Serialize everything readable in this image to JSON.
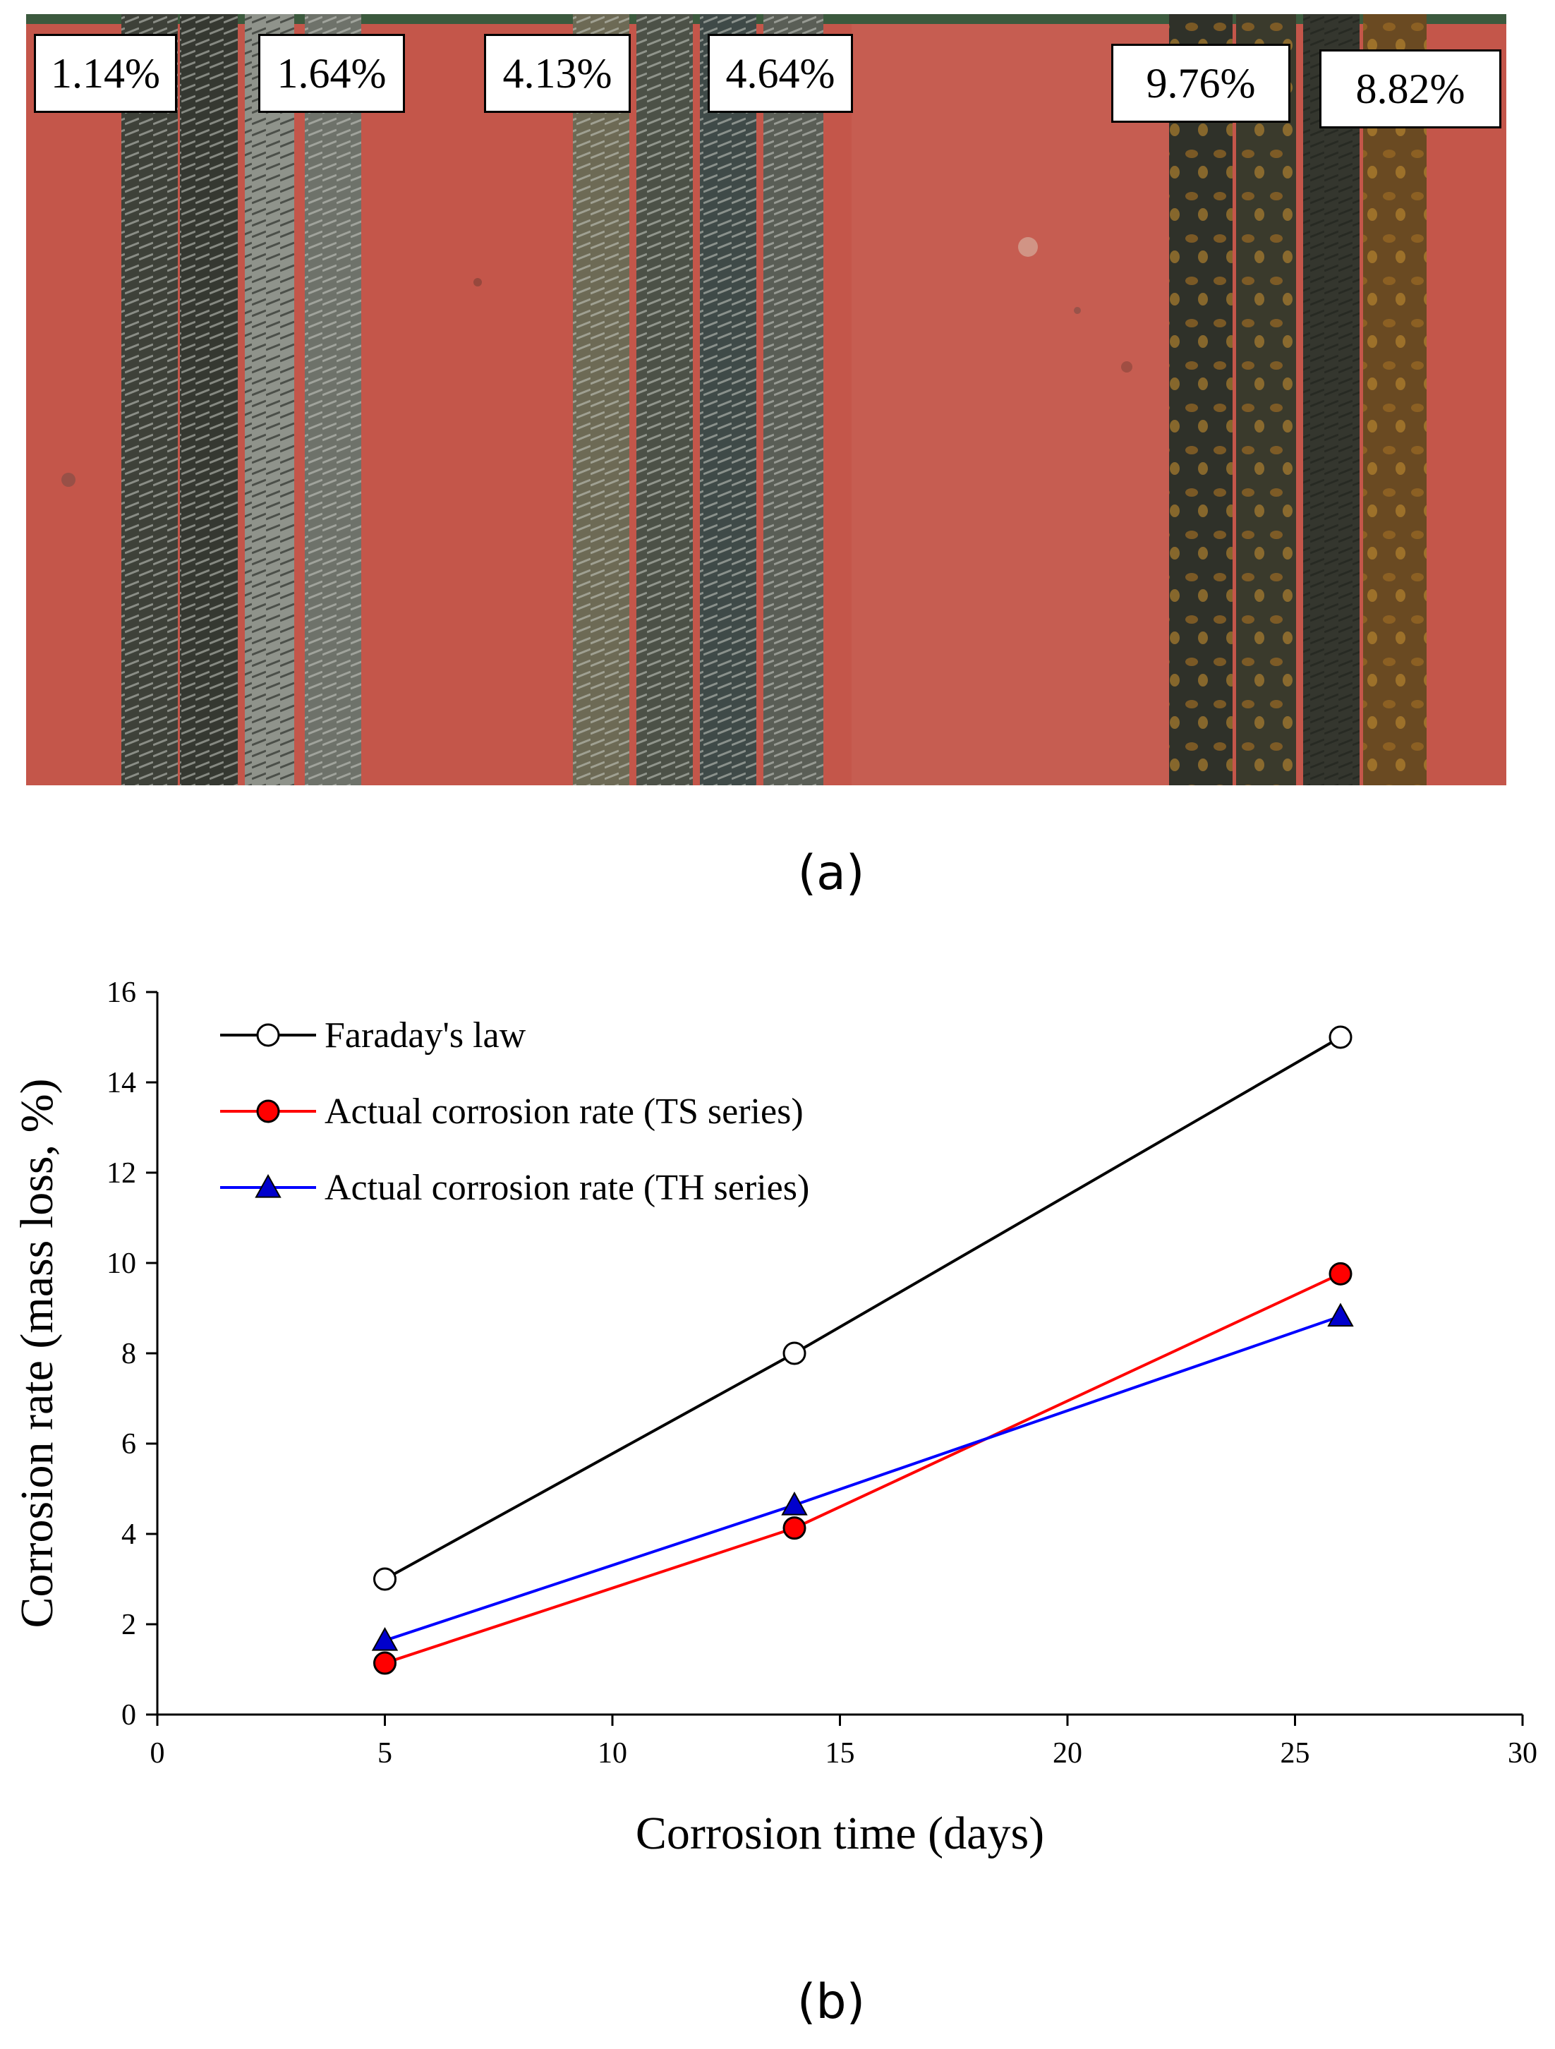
{
  "figure": {
    "panel_a_caption": "(a)",
    "panel_b_caption": "(b)"
  },
  "photo": {
    "labels": [
      "1.14%",
      "1.64%",
      "4.13%",
      "4.64%",
      "9.76%",
      "8.82%"
    ],
    "colors": {
      "background": "#c4564a",
      "rebar_dark": "#3a3d35",
      "rebar_light": "#9fa29a",
      "rust": "#8a5a22"
    }
  },
  "chart_data": {
    "type": "line",
    "xlabel": "Corrosion time (days)",
    "ylabel": "Corrosion rate (mass loss, %)",
    "xlim": [
      0,
      30
    ],
    "ylim": [
      0,
      16
    ],
    "xticks": [
      0,
      5,
      10,
      15,
      20,
      25,
      30
    ],
    "yticks": [
      0,
      2,
      4,
      6,
      8,
      10,
      12,
      14,
      16
    ],
    "grid": false,
    "legend_position": "top-left",
    "series": [
      {
        "name": "Faraday's law",
        "color": "#000000",
        "marker": "open-circle",
        "x": [
          5,
          14,
          26
        ],
        "y": [
          3.0,
          8.0,
          15.0
        ]
      },
      {
        "name": "Actual corrosion rate (TS series)",
        "color": "#ff0000",
        "marker": "filled-circle",
        "marker_fill": "#ff0000",
        "x": [
          5,
          14,
          26
        ],
        "y": [
          1.14,
          4.13,
          9.76
        ]
      },
      {
        "name": "Actual corrosion rate (TH series)",
        "color": "#0000ff",
        "marker": "filled-triangle",
        "marker_fill": "#0000cc",
        "x": [
          5,
          14,
          26
        ],
        "y": [
          1.64,
          4.64,
          8.82
        ]
      }
    ]
  }
}
